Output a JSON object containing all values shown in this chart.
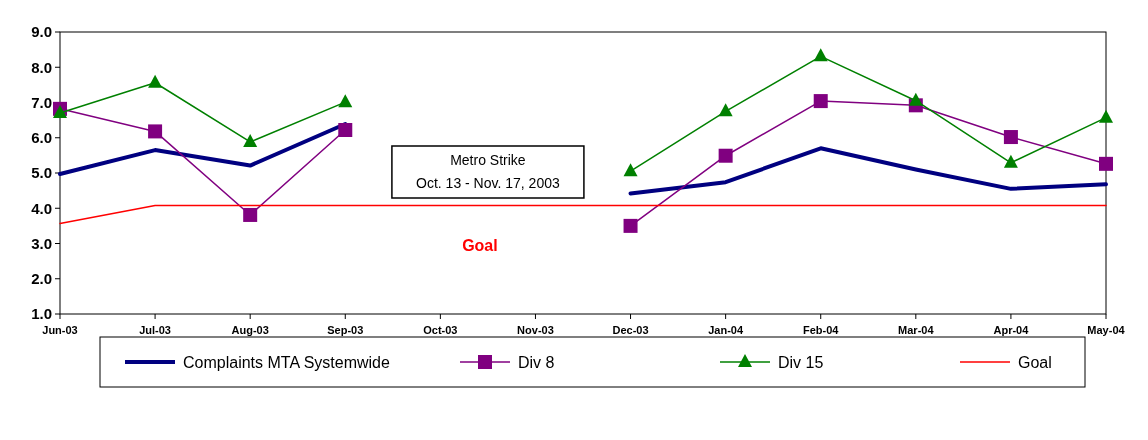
{
  "chart_data": {
    "type": "line",
    "categories": [
      "Jun-03",
      "Jul-03",
      "Aug-03",
      "Sep-03",
      "Oct-03",
      "Nov-03",
      "Dec-03",
      "Jan-04",
      "Feb-04",
      "Mar-04",
      "Apr-04",
      "May-04"
    ],
    "series": [
      {
        "name": "Complaints MTA Systemwide",
        "color": "#000080",
        "marker": "none",
        "values": [
          4.97,
          5.65,
          5.21,
          6.39,
          null,
          null,
          4.42,
          4.74,
          5.7,
          5.1,
          4.55,
          4.68
        ]
      },
      {
        "name": "Div 8",
        "color": "#800080",
        "marker": "square",
        "values": [
          6.82,
          6.18,
          3.81,
          6.22,
          null,
          null,
          3.5,
          5.49,
          7.04,
          6.92,
          6.02,
          5.26
        ]
      },
      {
        "name": "Div 15",
        "color": "#008000",
        "marker": "triangle",
        "values": [
          6.7,
          7.56,
          5.88,
          7.01,
          null,
          null,
          5.05,
          6.75,
          8.31,
          7.05,
          5.29,
          6.57
        ]
      },
      {
        "name": "Goal",
        "color": "#ff0000",
        "marker": "none",
        "values": [
          3.57,
          4.08,
          4.08,
          4.08,
          4.08,
          4.08,
          4.08,
          4.08,
          4.08,
          4.08,
          4.08,
          4.08
        ]
      }
    ],
    "ylim": [
      1,
      9
    ],
    "yticks": [
      {
        "value": 1,
        "label": "1.0"
      },
      {
        "value": 2,
        "label": "2.0"
      },
      {
        "value": 3,
        "label": "3.0"
      },
      {
        "value": 4,
        "label": "4.0"
      },
      {
        "value": 5,
        "label": "5.0"
      },
      {
        "value": 6,
        "label": "6.0"
      },
      {
        "value": 7,
        "label": "7.0"
      },
      {
        "value": 8,
        "label": "8.0"
      },
      {
        "value": 9,
        "label": "9.0"
      }
    ],
    "annotations": [
      "Metro Strike\nOct. 13 - Nov. 17, 2003",
      "Goal"
    ],
    "grid": false,
    "legend": "bottom",
    "line_style": "solid"
  }
}
